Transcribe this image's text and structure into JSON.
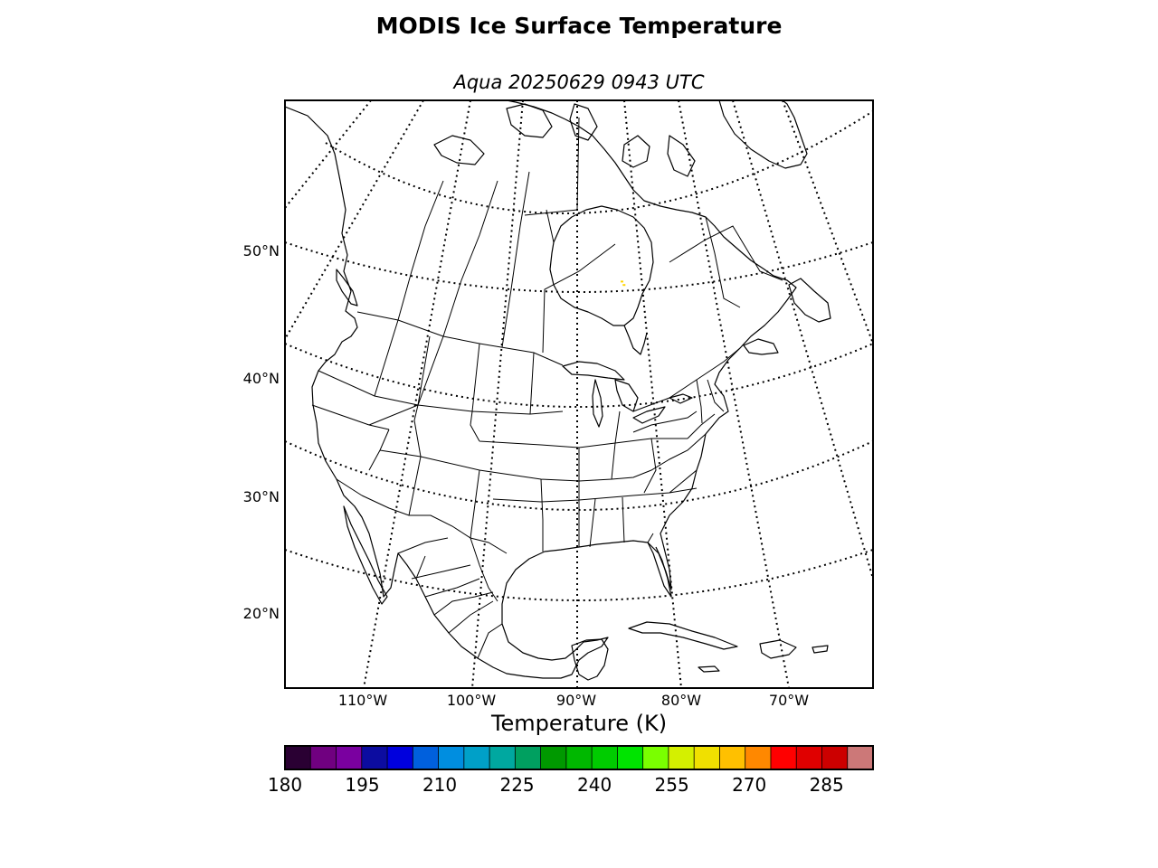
{
  "title": "MODIS Ice Surface Temperature",
  "subtitle": "Aqua 20250629 0943 UTC",
  "map": {
    "projection": "Lambert conformal conic",
    "coastlines": true,
    "country_borders": true,
    "state_borders": true,
    "graticule_style": "dotted",
    "background_color": "#ffffff",
    "line_color": "#000000",
    "lat_labels": [
      "50°N",
      "40°N",
      "30°N",
      "20°N"
    ],
    "lon_labels": [
      "110°W",
      "100°W",
      "90°W",
      "80°W",
      "70°W"
    ]
  },
  "colorbar": {
    "title": "Temperature (K)",
    "min": 180,
    "max": 294,
    "step": 5,
    "tick_labels": [
      "180",
      "195",
      "210",
      "225",
      "240",
      "255",
      "270",
      "285"
    ],
    "colors": [
      "#2a0033",
      "#700080",
      "#7a00a0",
      "#0c0ca0",
      "#0000dd",
      "#0060dd",
      "#008ee0",
      "#00a0c8",
      "#00a8a0",
      "#00a060",
      "#009900",
      "#00b800",
      "#00cc00",
      "#00e400",
      "#7aff00",
      "#d4f000",
      "#f0e000",
      "#ffc000",
      "#ff8800",
      "#ff0000",
      "#e00000",
      "#cc0000",
      "#cc7878"
    ]
  },
  "data_points": {
    "description_color": "#ffd400",
    "location_lat_lon": [
      [
        49.5,
        -86.0
      ],
      [
        49.0,
        -85.8
      ]
    ]
  }
}
